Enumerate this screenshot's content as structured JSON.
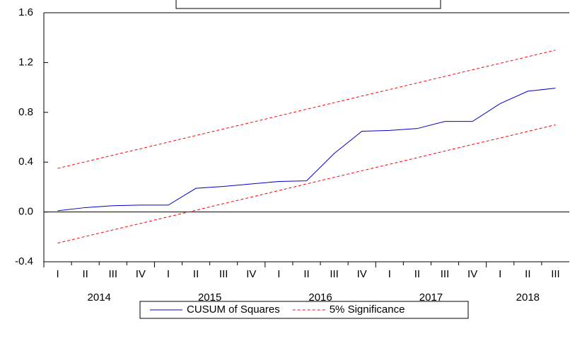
{
  "chart_data": {
    "type": "line",
    "categories": [
      "I",
      "II",
      "III",
      "IV",
      "I",
      "II",
      "III",
      "IV",
      "I",
      "II",
      "III",
      "IV",
      "I",
      "II",
      "III",
      "IV",
      "I",
      "II",
      "III"
    ],
    "years": [
      "2014",
      "2015",
      "2016",
      "2017",
      "2018"
    ],
    "series": [
      {
        "name": "CUSUM of Squares",
        "color": "#0000cc",
        "dashed": false,
        "values": [
          0.01,
          0.035,
          0.05,
          0.055,
          0.055,
          0.19,
          0.205,
          0.225,
          0.245,
          0.25,
          0.47,
          0.648,
          0.655,
          0.67,
          0.727,
          0.727,
          0.87,
          0.97,
          0.994
        ]
      },
      {
        "name": "5% Significance",
        "color": "#ff0000",
        "dashed": true,
        "values": [
          0.35,
          0.403,
          0.456,
          0.508,
          0.561,
          0.614,
          0.667,
          0.719,
          0.772,
          0.825,
          0.878,
          0.931,
          0.983,
          1.036,
          1.089,
          1.142,
          1.194,
          1.247,
          1.3
        ]
      },
      {
        "color": "#ff0000",
        "dashed": true,
        "values": [
          -0.25,
          -0.197,
          -0.144,
          -0.092,
          -0.039,
          0.014,
          0.067,
          0.119,
          0.172,
          0.225,
          0.278,
          0.331,
          0.383,
          0.436,
          0.489,
          0.542,
          0.594,
          0.647,
          0.7
        ]
      }
    ],
    "ylim": [
      -0.4,
      1.6
    ],
    "yticks": [
      -0.4,
      {
        "value": 0,
        "label": "0.0"
      },
      0.4,
      0.8,
      1.2,
      1.6
    ],
    "zero_line": true
  }
}
